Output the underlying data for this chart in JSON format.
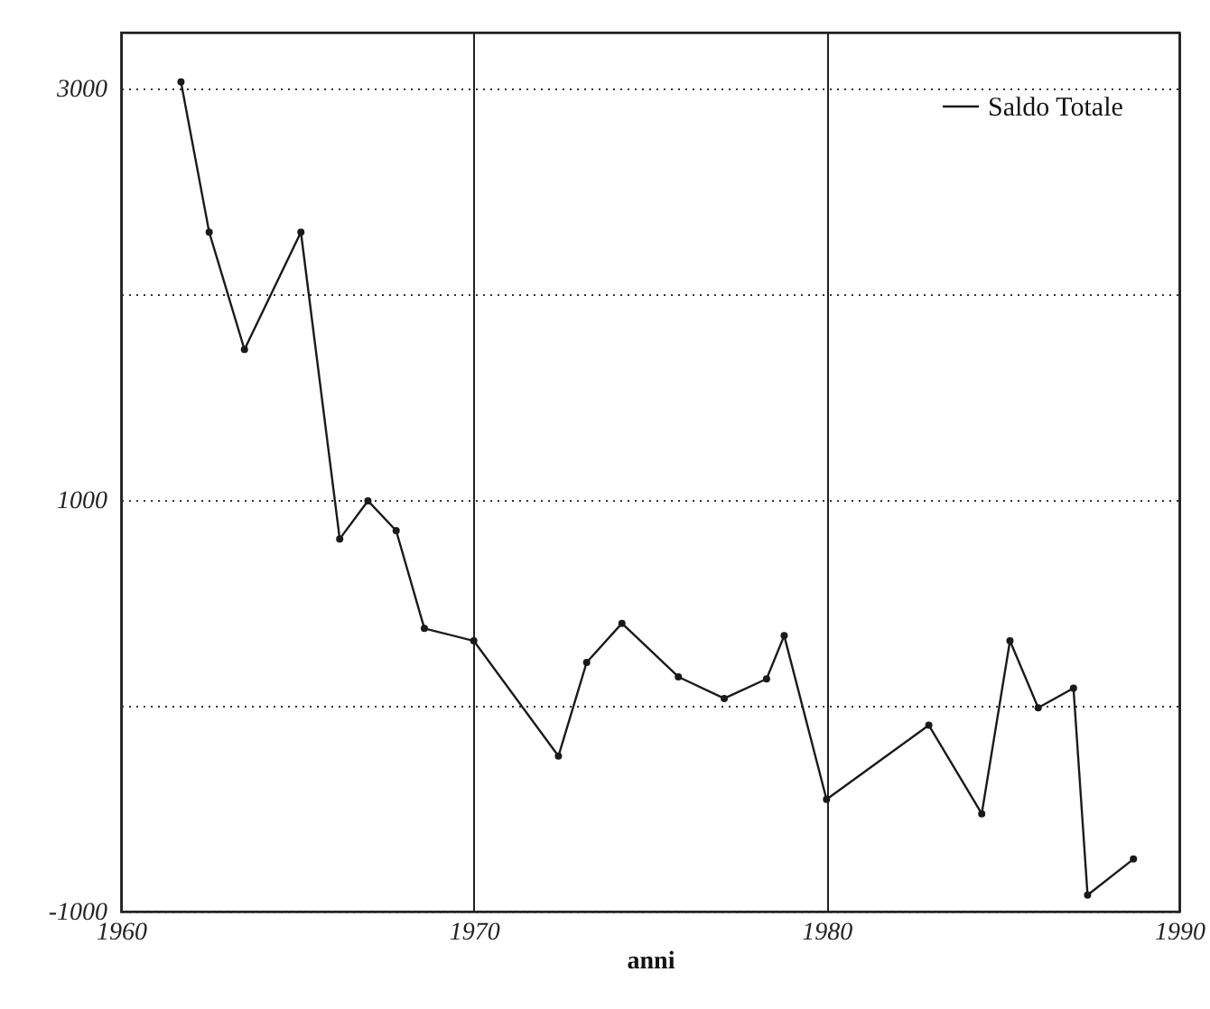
{
  "chart_data": {
    "type": "line",
    "xlabel": "anni",
    "x": [
      1961.7,
      1962.5,
      1963.5,
      1965.1,
      1966.2,
      1967.0,
      1967.8,
      1968.6,
      1970.0,
      1972.4,
      1973.2,
      1974.2,
      1975.8,
      1977.1,
      1978.3,
      1978.8,
      1980.0,
      1982.9,
      1984.4,
      1985.2,
      1986.0,
      1987.0,
      1987.4,
      1988.7
    ],
    "series": [
      {
        "name": "Saldo Totale",
        "color": "#1a1a1a",
        "values": [
          3030,
          2300,
          1730,
          2300,
          810,
          995,
          850,
          375,
          315,
          -245,
          210,
          400,
          140,
          35,
          130,
          340,
          -455,
          -95,
          -525,
          315,
          -10,
          85,
          -920,
          -745
        ]
      }
    ],
    "xlim": [
      1960,
      1990
    ],
    "xticks": [
      1960,
      1970,
      1980,
      1990
    ],
    "ylim": [
      -1000,
      3270
    ],
    "yticks": [
      -1000,
      {
        "value": 0,
        "label": null
      },
      1000,
      {
        "value": 2000,
        "label": null
      },
      3000
    ],
    "grid": true,
    "legend": "top right",
    "marker": "circle",
    "line_style": "solid"
  }
}
